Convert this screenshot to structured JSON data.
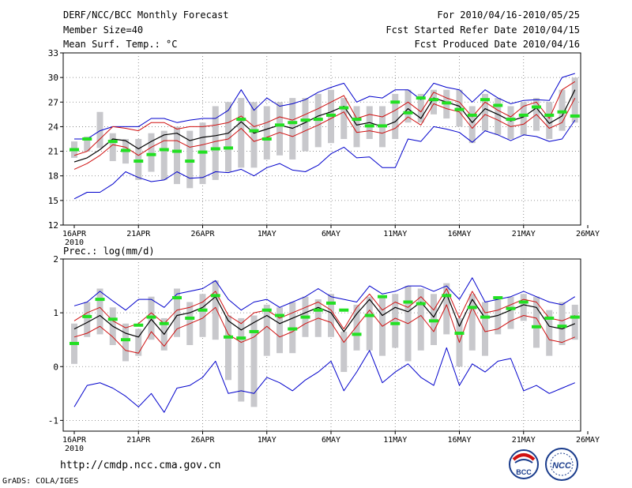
{
  "header": {
    "title": "DERF/NCC/BCC Monthly Forecast",
    "member_size": "Member Size=40",
    "variable1": "Mean Surf. Temp.: °C",
    "period": "For 2010/04/16-2010/05/25",
    "started": "Fcst Started Refer Date 2010/04/15",
    "produced": "Fcst Produced Date 2010/04/16"
  },
  "footer": {
    "url": "http://cmdp.ncc.cma.gov.cn",
    "credit": "GrADS: COLA/IGES",
    "logo1_text": "BCC",
    "logo2_text": "NCC"
  },
  "colors": {
    "box": "#c8c8cc",
    "obs": "#22e022",
    "mean": "#000000",
    "inner": "#d01010",
    "outer": "#0000cc"
  },
  "chart_data": [
    {
      "type": "line",
      "title": "Mean Surf. Temp.: °C",
      "year_label": "2010",
      "x_ticks": [
        "16APR",
        "21APR",
        "26APR",
        "1MAY",
        "6MAY",
        "11MAY",
        "16MAY",
        "21MAY",
        "26MAY"
      ],
      "y_ticks": [
        12,
        15,
        18,
        21,
        24,
        27,
        30,
        33
      ],
      "ylim": [
        12,
        33
      ],
      "x_count": 40,
      "grid": true,
      "series": [
        {
          "name": "upper",
          "values": [
            22.5,
            22.5,
            23.5,
            24,
            24,
            24,
            25,
            25,
            24.5,
            24.8,
            25,
            25,
            26,
            28.5,
            26,
            27.5,
            26.5,
            26.8,
            27.3,
            28.2,
            28.8,
            29.3,
            27,
            27.7,
            27.5,
            28.5,
            28.5,
            27.3,
            29.3,
            28.8,
            28.5,
            27,
            28.5,
            27.5,
            26.8,
            27.2,
            27.3,
            27.2,
            30,
            30.5
          ]
        },
        {
          "name": "inner_upper",
          "values": [
            20.5,
            21,
            22.5,
            24,
            23.8,
            23.5,
            24.5,
            24.5,
            23.7,
            24,
            24,
            24.2,
            24.5,
            25.3,
            24,
            24.5,
            25.2,
            24.8,
            25.5,
            26.2,
            27,
            27.8,
            25,
            25.5,
            25.2,
            26,
            27,
            25.8,
            28.2,
            27.5,
            27,
            25.2,
            27,
            26,
            25.2,
            26.5,
            27,
            25,
            28.5,
            29.5
          ]
        },
        {
          "name": "mean",
          "values": [
            19.7,
            20.2,
            21.2,
            22.5,
            22.3,
            21.3,
            22.2,
            23,
            23.2,
            22.3,
            22.7,
            22.9,
            23.2,
            24.6,
            23.2,
            23.7,
            24.2,
            23.8,
            24.5,
            25.3,
            25.8,
            26.5,
            24.2,
            24.5,
            24,
            24.6,
            26.2,
            25,
            27.5,
            27,
            26.5,
            24.5,
            26.2,
            25.5,
            24.7,
            25.2,
            26.3,
            24.4,
            25.3,
            28.5
          ]
        },
        {
          "name": "inner_lower",
          "values": [
            18.8,
            19.5,
            20.5,
            21.8,
            21.5,
            20.5,
            21.5,
            22.3,
            22.3,
            21.5,
            21.8,
            22.2,
            22.5,
            23.8,
            22.2,
            22.7,
            23.3,
            22.8,
            23.5,
            24.2,
            25,
            25.8,
            23.3,
            23.5,
            23.2,
            23.8,
            25.2,
            24.2,
            26.8,
            26.2,
            25.8,
            23.8,
            25.5,
            24.8,
            24,
            24.3,
            25.5,
            23.8,
            24.5,
            27.5
          ]
        },
        {
          "name": "lower",
          "values": [
            15.2,
            16,
            16,
            17,
            18.5,
            17.8,
            17.3,
            17.5,
            18.5,
            17.7,
            17.8,
            18.5,
            18.4,
            18.8,
            18,
            19,
            19.5,
            18.7,
            18.5,
            19.3,
            20.7,
            21.5,
            20.2,
            20.3,
            19,
            19,
            22.5,
            22.2,
            24,
            23.7,
            23.3,
            22.1,
            23.5,
            23,
            22.3,
            23,
            22.8,
            22.2,
            22.5,
            24.8
          ]
        },
        {
          "name": "observed",
          "values": [
            21.2,
            22.5,
            null,
            22.2,
            21.1,
            19.8,
            20.6,
            21.2,
            21.0,
            19.8,
            20.9,
            21.3,
            21.4,
            24.9,
            23.5,
            22.5,
            24.2,
            24.5,
            24.8,
            24.9,
            25.4,
            26.3,
            24.9,
            24.1,
            24.1,
            27.0,
            25.7,
            27.5,
            27.3,
            26.9,
            26.1,
            25.4,
            27.3,
            26.6,
            24.9,
            25.4,
            26.4,
            25.4,
            25.8,
            25.3
          ]
        }
      ],
      "box_ranges": [
        [
          20.2,
          22.2
        ],
        [
          21,
          22.8
        ],
        [
          21.4,
          25.8
        ],
        [
          19.8,
          23.2
        ],
        [
          19.5,
          22.5
        ],
        [
          17.5,
          22.5
        ],
        [
          18.5,
          23.2
        ],
        [
          17.5,
          23.5
        ],
        [
          17,
          24
        ],
        [
          16.5,
          23.5
        ],
        [
          17,
          24.5
        ],
        [
          17.5,
          26.5
        ],
        [
          18.5,
          27
        ],
        [
          19,
          27.5
        ],
        [
          19,
          27
        ],
        [
          20,
          26.5
        ],
        [
          20.5,
          27
        ],
        [
          20,
          27.5
        ],
        [
          21,
          27.5
        ],
        [
          21.5,
          28
        ],
        [
          22,
          28.5
        ],
        [
          22.5,
          27.5
        ],
        [
          21.5,
          26.5
        ],
        [
          22.5,
          26.5
        ],
        [
          21.5,
          26.5
        ],
        [
          22.5,
          28
        ],
        [
          24.5,
          28.5
        ],
        [
          24.5,
          28
        ],
        [
          25.5,
          28.5
        ],
        [
          25,
          28.5
        ],
        [
          24,
          28.5
        ],
        [
          22,
          26.5
        ],
        [
          23.5,
          28
        ],
        [
          23,
          27.5
        ],
        [
          22.5,
          26.5
        ],
        [
          23,
          27
        ],
        [
          23.5,
          27.5
        ],
        [
          22.5,
          27
        ],
        [
          23.5,
          28.5
        ],
        [
          24.5,
          30
        ]
      ]
    },
    {
      "type": "line",
      "title": "Prec.: log(mm/d)",
      "year_label": "2010",
      "x_ticks": [
        "16APR",
        "21APR",
        "26APR",
        "1MAY",
        "6MAY",
        "11MAY",
        "16MAY",
        "21MAY",
        "26MAY"
      ],
      "y_ticks": [
        -1,
        0,
        1,
        2
      ],
      "ylim": [
        -1.2,
        2
      ],
      "x_count": 40,
      "grid": true,
      "series": [
        {
          "name": "upper",
          "values": [
            1.13,
            1.2,
            1.4,
            1.22,
            1.05,
            1.25,
            1.25,
            1.1,
            1.35,
            1.4,
            1.45,
            1.6,
            1.25,
            1.05,
            1.2,
            1.25,
            1.1,
            1.2,
            1.3,
            1.45,
            1.3,
            1.25,
            1.2,
            1.5,
            1.35,
            1.4,
            1.5,
            1.5,
            1.4,
            1.5,
            1.25,
            1.65,
            1.2,
            1.25,
            1.3,
            1.4,
            1.3,
            1.2,
            1.15,
            1.3
          ]
        },
        {
          "name": "inner_upper",
          "values": [
            0.85,
            1.0,
            1.1,
            0.85,
            0.72,
            0.8,
            1.0,
            0.8,
            1.05,
            1.1,
            1.2,
            1.4,
            0.95,
            0.8,
            1.0,
            1.05,
            0.9,
            1.0,
            1.1,
            1.2,
            1.05,
            0.7,
            1.1,
            1.35,
            1.05,
            1.2,
            1.1,
            1.3,
            1.05,
            1.45,
            0.9,
            1.4,
            1.0,
            1.05,
            1.15,
            1.25,
            1.2,
            0.9,
            0.85,
            0.95
          ]
        },
        {
          "name": "mean",
          "values": [
            0.7,
            0.82,
            0.95,
            0.75,
            0.62,
            0.55,
            0.88,
            0.6,
            0.95,
            1.0,
            1.1,
            1.3,
            0.85,
            0.68,
            0.82,
            0.95,
            0.8,
            0.9,
            1.0,
            1.1,
            1.0,
            0.65,
            0.98,
            1.25,
            0.95,
            1.1,
            1.02,
            1.2,
            0.92,
            1.35,
            0.75,
            1.25,
            0.9,
            0.95,
            1.05,
            1.15,
            1.1,
            0.75,
            0.7,
            0.8
          ]
        },
        {
          "name": "inner_lower",
          "values": [
            0.55,
            0.62,
            0.75,
            0.55,
            0.3,
            0.25,
            0.65,
            0.38,
            0.7,
            0.8,
            0.9,
            1.1,
            0.6,
            0.45,
            0.55,
            0.75,
            0.55,
            0.65,
            0.8,
            0.9,
            0.82,
            0.45,
            0.75,
            1.05,
            0.75,
            0.9,
            0.8,
            0.95,
            0.65,
            1.15,
            0.45,
            1.1,
            0.65,
            0.7,
            0.85,
            0.95,
            0.9,
            0.5,
            0.45,
            0.55
          ]
        },
        {
          "name": "lower",
          "values": [
            -0.75,
            -0.35,
            -0.3,
            -0.4,
            -0.55,
            -0.75,
            -0.5,
            -0.85,
            -0.4,
            -0.35,
            -0.2,
            0.1,
            -0.5,
            -0.45,
            -0.5,
            -0.2,
            -0.3,
            -0.45,
            -0.25,
            -0.1,
            0.1,
            -0.45,
            -0.1,
            0.3,
            -0.3,
            -0.1,
            0.05,
            -0.2,
            -0.35,
            0.35,
            -0.35,
            0.05,
            -0.1,
            0.1,
            0.15,
            -0.45,
            -0.35,
            -0.5,
            -0.4,
            -0.3
          ]
        },
        {
          "name": "observed",
          "values": [
            0.43,
            0.93,
            1.25,
            0.88,
            0.5,
            0.77,
            0.92,
            0.8,
            1.28,
            0.9,
            1.05,
            1.32,
            0.55,
            0.53,
            0.65,
            1.05,
            0.95,
            0.7,
            0.92,
            1.05,
            1.18,
            1.05,
            0.6,
            0.95,
            1.3,
            0.8,
            1.2,
            1.17,
            0.85,
            1.32,
            0.62,
            1.1,
            0.92,
            1.28,
            1.08,
            1.2,
            0.74,
            0.9,
            0.75,
            0.92
          ]
        }
      ],
      "box_ranges": [
        [
          0.05,
          0.8
        ],
        [
          0.55,
          1.2
        ],
        [
          0.6,
          1.45
        ],
        [
          0.4,
          1.1
        ],
        [
          0.1,
          0.8
        ],
        [
          0.2,
          0.7
        ],
        [
          0.5,
          1.3
        ],
        [
          0.3,
          0.9
        ],
        [
          0.55,
          1.45
        ],
        [
          0.4,
          1.2
        ],
        [
          0.55,
          1.35
        ],
        [
          0.5,
          1.6
        ],
        [
          -0.25,
          0.95
        ],
        [
          -0.65,
          0.9
        ],
        [
          -0.75,
          0.95
        ],
        [
          0.2,
          1.15
        ],
        [
          0.25,
          1.1
        ],
        [
          0.25,
          1.2
        ],
        [
          0.55,
          1.3
        ],
        [
          0.55,
          1.25
        ],
        [
          0.55,
          1.35
        ],
        [
          -0.1,
          0.65
        ],
        [
          0.3,
          1.15
        ],
        [
          0.3,
          1.3
        ],
        [
          0.2,
          1.3
        ],
        [
          0.35,
          1.35
        ],
        [
          0.1,
          1.5
        ],
        [
          0.3,
          1.45
        ],
        [
          0.4,
          1.35
        ],
        [
          0.6,
          1.55
        ],
        [
          0.0,
          0.9
        ],
        [
          0.3,
          1.35
        ],
        [
          0.2,
          1.2
        ],
        [
          0.6,
          1.25
        ],
        [
          0.7,
          1.3
        ],
        [
          0.85,
          1.35
        ],
        [
          0.35,
          1.3
        ],
        [
          0.2,
          1.05
        ],
        [
          0.4,
          1.2
        ],
        [
          0.5,
          1.15
        ]
      ]
    }
  ]
}
